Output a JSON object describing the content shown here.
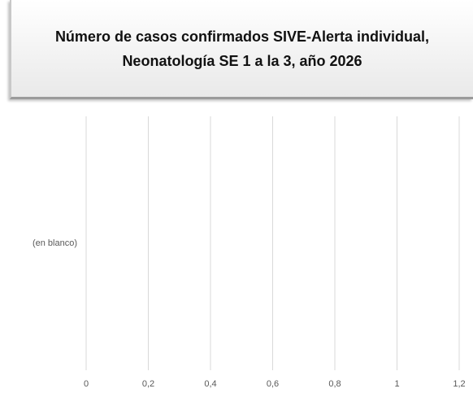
{
  "chart_data": {
    "type": "barh",
    "title": "Número de casos confirmados SIVE-Alerta individual, Neonatología SE 1 a la 3, año 2026",
    "categories": [
      "(en blanco)"
    ],
    "values": [
      null
    ],
    "color": "#4472c4",
    "xlim": [
      0,
      1.2
    ],
    "xticks": [
      0,
      {
        "value": 0.2,
        "label": "0,2"
      },
      {
        "value": 0.4,
        "label": "0,4"
      },
      {
        "value": 0.6,
        "label": "0,6"
      },
      {
        "value": 0.8,
        "label": "0,8"
      },
      1,
      {
        "value": 1.2,
        "label": "1,2"
      }
    ],
    "grid": true
  }
}
